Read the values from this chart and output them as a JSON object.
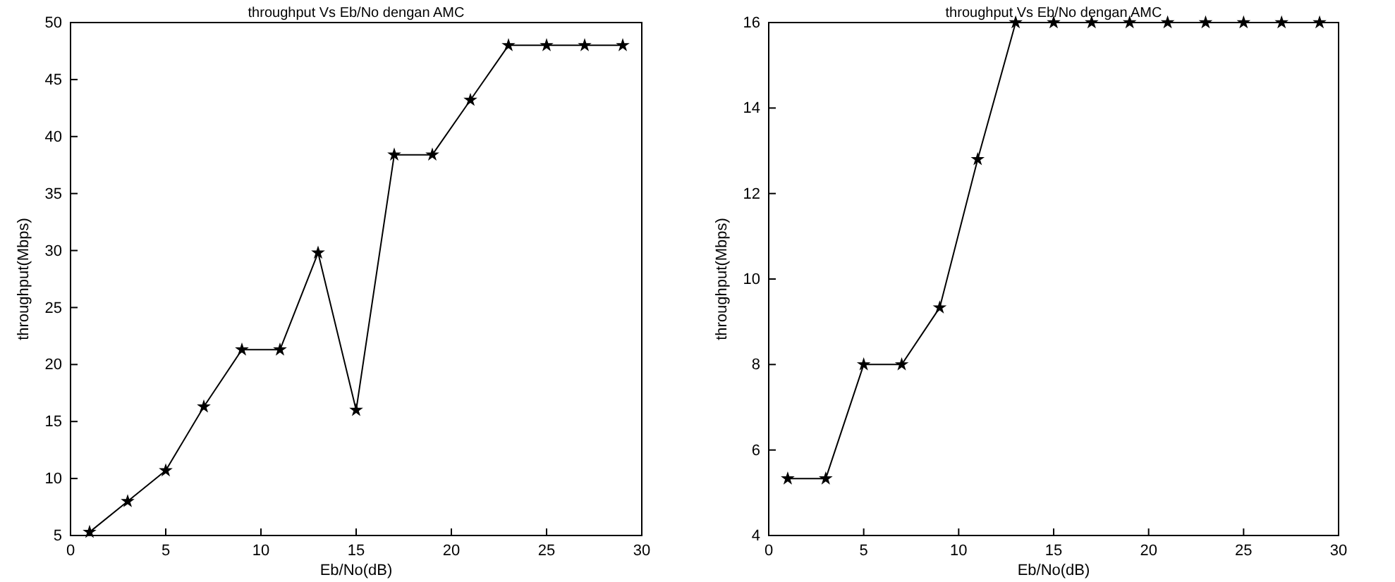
{
  "chart_data": [
    {
      "type": "line",
      "title": "throughput Vs Eb/No dengan AMC",
      "xlabel": "Eb/No(dB)",
      "ylabel": "throughput(Mbps)",
      "x": [
        1,
        3,
        5,
        7,
        9,
        11,
        13,
        15,
        17,
        19,
        21,
        23,
        25,
        27,
        29
      ],
      "series": [
        {
          "color": "#000000",
          "values": [
            5.3,
            8,
            10.7,
            16.3,
            21.3,
            21.3,
            29.8,
            16,
            38.4,
            38.4,
            43.2,
            48,
            48,
            48,
            48
          ]
        }
      ],
      "xlim": [
        0,
        30
      ],
      "xticks": [
        0,
        5,
        10,
        15,
        20,
        25,
        30
      ],
      "ylim": [
        5,
        50
      ],
      "yticks": [
        5,
        10,
        15,
        20,
        25,
        30,
        35,
        40,
        45,
        50
      ],
      "marker": "star",
      "grid": false
    },
    {
      "type": "line",
      "title": "throughput Vs Eb/No dengan AMC",
      "xlabel": "Eb/No(dB)",
      "ylabel": "throughput(Mbps)",
      "x": [
        1,
        3,
        5,
        7,
        9,
        11,
        13,
        15,
        17,
        19,
        21,
        23,
        25,
        27,
        29
      ],
      "series": [
        {
          "color": "#000000",
          "values": [
            5.33,
            5.33,
            8,
            8,
            9.33,
            12.8,
            16,
            16,
            16,
            16,
            16,
            16,
            16,
            16,
            16
          ]
        }
      ],
      "xlim": [
        0,
        30
      ],
      "xticks": [
        0,
        5,
        10,
        15,
        20,
        25,
        30
      ],
      "ylim": [
        4,
        16
      ],
      "yticks": [
        4,
        6,
        8,
        10,
        12,
        14,
        16
      ],
      "marker": "star",
      "grid": false
    }
  ]
}
